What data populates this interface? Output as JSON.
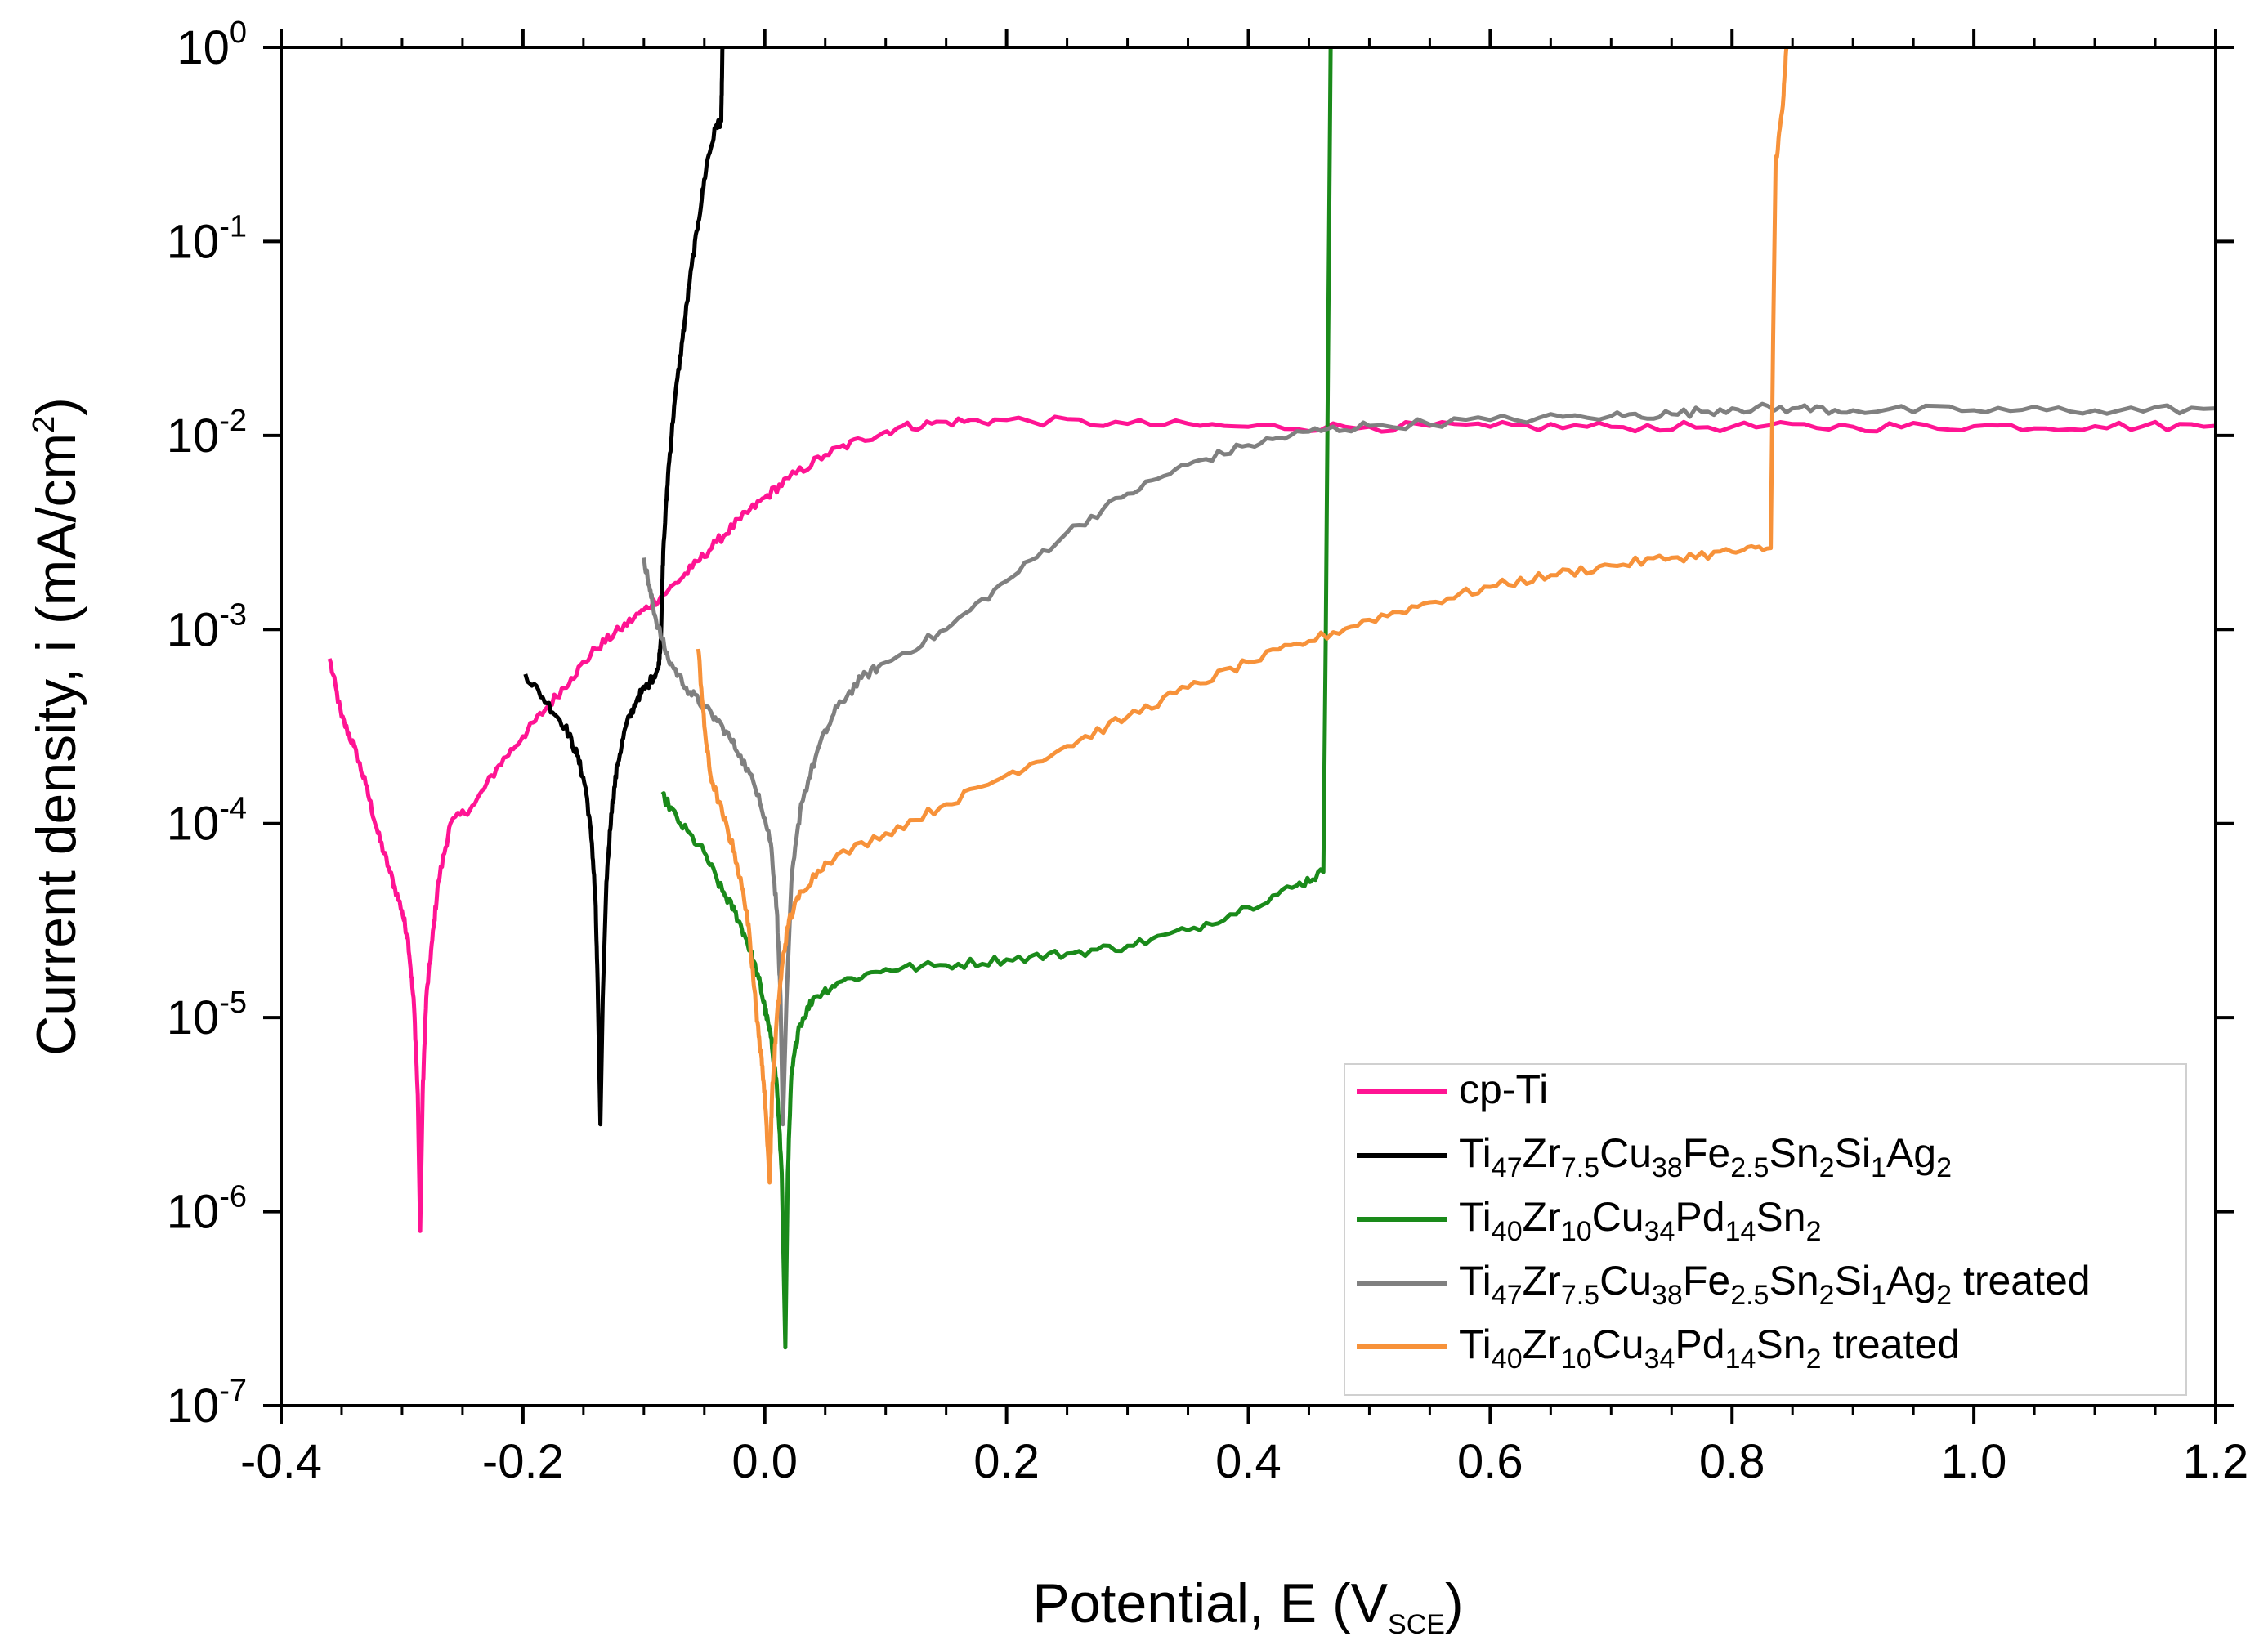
{
  "chart_data": {
    "type": "line",
    "xlabel": "Potential, E (V",
    "xlabel_sub": "SCE",
    "xlabel_end": ")",
    "ylabel": "Current density, i (mA/cm",
    "ylabel_sup": "2",
    "ylabel_end": ")",
    "xlim": [
      -0.4,
      1.2
    ],
    "ylim_log10": [
      -7,
      0
    ],
    "yscale": "log",
    "xticks": [
      -0.4,
      -0.2,
      0.0,
      0.2,
      0.4,
      0.6,
      0.8,
      1.0,
      1.2
    ],
    "xtick_labels": [
      "-0.4",
      "-0.2",
      "0.0",
      "0.2",
      "0.4",
      "0.6",
      "0.8",
      "1.0",
      "1.2"
    ],
    "yticks_exp": [
      -7,
      -6,
      -5,
      -4,
      -3,
      -2,
      -1,
      0
    ],
    "ytick_base": "10",
    "ytick_exps": [
      "-7",
      "-6",
      "-5",
      "-4",
      "-3",
      "-2",
      "-1",
      "0"
    ],
    "legend_position": "bottom-right",
    "series": [
      {
        "name": "cp-Ti",
        "color": "#ff1493",
        "label_parts": [
          [
            "cp-Ti",
            ""
          ]
        ],
        "points": [
          [
            -0.36,
            -3.15
          ],
          [
            -0.35,
            -3.45
          ],
          [
            -0.34,
            -3.6
          ],
          [
            -0.33,
            -3.8
          ],
          [
            -0.32,
            -4.05
          ],
          [
            -0.31,
            -4.25
          ],
          [
            -0.3,
            -4.45
          ],
          [
            -0.295,
            -4.6
          ],
          [
            -0.29,
            -4.95
          ],
          [
            -0.287,
            -5.4
          ],
          [
            -0.285,
            -6.1
          ],
          [
            -0.283,
            -5.4
          ],
          [
            -0.28,
            -4.9
          ],
          [
            -0.275,
            -4.6
          ],
          [
            -0.27,
            -4.3
          ],
          [
            -0.26,
            -4.0
          ],
          [
            -0.24,
            -3.9
          ],
          [
            -0.22,
            -3.7
          ],
          [
            -0.2,
            -3.55
          ],
          [
            -0.18,
            -3.4
          ],
          [
            -0.16,
            -3.25
          ],
          [
            -0.14,
            -3.1
          ],
          [
            -0.12,
            -3.0
          ],
          [
            -0.1,
            -2.9
          ],
          [
            -0.08,
            -2.8
          ],
          [
            -0.06,
            -2.68
          ],
          [
            -0.04,
            -2.55
          ],
          [
            -0.02,
            -2.43
          ],
          [
            0.0,
            -2.32
          ],
          [
            0.02,
            -2.22
          ],
          [
            0.05,
            -2.1
          ],
          [
            0.08,
            -2.02
          ],
          [
            0.11,
            -1.96
          ],
          [
            0.15,
            -1.93
          ],
          [
            0.2,
            -1.92
          ],
          [
            0.3,
            -1.94
          ],
          [
            0.4,
            -1.955
          ],
          [
            0.5,
            -1.955
          ],
          [
            0.6,
            -1.955
          ],
          [
            0.7,
            -1.955
          ],
          [
            0.8,
            -1.955
          ],
          [
            0.9,
            -1.955
          ],
          [
            1.0,
            -1.952
          ],
          [
            1.1,
            -1.952
          ],
          [
            1.2,
            -1.95
          ]
        ]
      },
      {
        "name": "Ti47Zr7.5Cu38Fe2.5Sn2Si1Ag2",
        "color": "#000000",
        "label_parts": [
          [
            "Ti",
            ""
          ],
          [
            "47",
            "sub"
          ],
          [
            "Zr",
            ""
          ],
          [
            "7.5",
            "sub"
          ],
          [
            "Cu",
            ""
          ],
          [
            "38",
            "sub"
          ],
          [
            "Fe",
            ""
          ],
          [
            "2.5",
            "sub"
          ],
          [
            "Sn",
            ""
          ],
          [
            "2",
            "sub"
          ],
          [
            "Si",
            ""
          ],
          [
            "1",
            "sub"
          ],
          [
            "Ag",
            ""
          ],
          [
            "2",
            "sub"
          ]
        ],
        "points": [
          [
            -0.198,
            -3.23
          ],
          [
            -0.18,
            -3.38
          ],
          [
            -0.165,
            -3.5
          ],
          [
            -0.155,
            -3.65
          ],
          [
            -0.148,
            -3.82
          ],
          [
            -0.143,
            -4.1
          ],
          [
            -0.14,
            -4.4
          ],
          [
            -0.138,
            -4.9
          ],
          [
            -0.136,
            -5.55
          ],
          [
            -0.134,
            -4.9
          ],
          [
            -0.131,
            -4.3
          ],
          [
            -0.127,
            -3.95
          ],
          [
            -0.122,
            -3.7
          ],
          [
            -0.115,
            -3.5
          ],
          [
            -0.105,
            -3.35
          ],
          [
            -0.095,
            -3.27
          ],
          [
            -0.088,
            -3.2
          ],
          [
            -0.086,
            -3.05
          ],
          [
            -0.084,
            -2.6
          ],
          [
            -0.08,
            -2.2
          ],
          [
            -0.075,
            -1.85
          ],
          [
            -0.068,
            -1.5
          ],
          [
            -0.062,
            -1.2
          ],
          [
            -0.055,
            -0.9
          ],
          [
            -0.048,
            -0.6
          ],
          [
            -0.04,
            -0.4
          ],
          [
            -0.036,
            -0.38
          ],
          [
            -0.035,
            0.0
          ]
        ]
      },
      {
        "name": "Ti40Zr10Cu34Pd14Sn2",
        "color": "#1a8a1a",
        "label_parts": [
          [
            "Ti",
            ""
          ],
          [
            "40",
            "sub"
          ],
          [
            "Zr",
            ""
          ],
          [
            "10",
            "sub"
          ],
          [
            "Cu",
            ""
          ],
          [
            "34",
            "sub"
          ],
          [
            "Pd",
            ""
          ],
          [
            "14",
            "sub"
          ],
          [
            "Sn",
            ""
          ],
          [
            "2",
            "sub"
          ]
        ],
        "points": [
          [
            -0.085,
            -3.85
          ],
          [
            -0.07,
            -4.0
          ],
          [
            -0.05,
            -4.15
          ],
          [
            -0.035,
            -4.35
          ],
          [
            -0.025,
            -4.45
          ],
          [
            -0.015,
            -4.6
          ],
          [
            -0.005,
            -4.8
          ],
          [
            0.0,
            -4.95
          ],
          [
            0.005,
            -5.1
          ],
          [
            0.01,
            -5.35
          ],
          [
            0.014,
            -5.8
          ],
          [
            0.017,
            -6.7
          ],
          [
            0.019,
            -5.8
          ],
          [
            0.022,
            -5.3
          ],
          [
            0.028,
            -5.05
          ],
          [
            0.04,
            -4.9
          ],
          [
            0.06,
            -4.82
          ],
          [
            0.1,
            -4.75
          ],
          [
            0.15,
            -4.73
          ],
          [
            0.2,
            -4.7
          ],
          [
            0.25,
            -4.67
          ],
          [
            0.3,
            -4.63
          ],
          [
            0.35,
            -4.55
          ],
          [
            0.4,
            -4.43
          ],
          [
            0.44,
            -4.32
          ],
          [
            0.462,
            -4.25
          ],
          [
            0.464,
            -3.0
          ],
          [
            0.466,
            -1.5
          ],
          [
            0.468,
            0.0
          ]
        ]
      },
      {
        "name": "Ti47Zr7.5Cu38Fe2.5Sn2Si1Ag2 treated",
        "color": "#808080",
        "label_parts": [
          [
            "Ti",
            ""
          ],
          [
            "47",
            "sub"
          ],
          [
            "Zr",
            ""
          ],
          [
            "7.5",
            "sub"
          ],
          [
            "Cu",
            ""
          ],
          [
            "38",
            "sub"
          ],
          [
            "Fe",
            ""
          ],
          [
            "2.5",
            "sub"
          ],
          [
            "Sn",
            ""
          ],
          [
            "2",
            "sub"
          ],
          [
            "Si",
            ""
          ],
          [
            "1",
            "sub"
          ],
          [
            "Ag",
            ""
          ],
          [
            "2",
            "sub"
          ],
          [
            " treated",
            ""
          ]
        ],
        "points": [
          [
            -0.1,
            -2.63
          ],
          [
            -0.095,
            -2.8
          ],
          [
            -0.09,
            -2.95
          ],
          [
            -0.08,
            -3.15
          ],
          [
            -0.065,
            -3.3
          ],
          [
            -0.05,
            -3.4
          ],
          [
            -0.035,
            -3.5
          ],
          [
            -0.02,
            -3.65
          ],
          [
            -0.005,
            -3.85
          ],
          [
            0.005,
            -4.1
          ],
          [
            0.01,
            -4.45
          ],
          [
            0.013,
            -4.9
          ],
          [
            0.015,
            -5.55
          ],
          [
            0.018,
            -4.9
          ],
          [
            0.022,
            -4.3
          ],
          [
            0.03,
            -3.9
          ],
          [
            0.045,
            -3.6
          ],
          [
            0.06,
            -3.4
          ],
          [
            0.08,
            -3.25
          ],
          [
            0.1,
            -3.17
          ],
          [
            0.15,
            -3.0
          ],
          [
            0.2,
            -2.75
          ],
          [
            0.25,
            -2.5
          ],
          [
            0.3,
            -2.3
          ],
          [
            0.35,
            -2.15
          ],
          [
            0.4,
            -2.05
          ],
          [
            0.45,
            -1.98
          ],
          [
            0.5,
            -1.95
          ],
          [
            0.6,
            -1.92
          ],
          [
            0.7,
            -1.9
          ],
          [
            0.75,
            -1.89
          ],
          [
            0.8,
            -1.86
          ],
          [
            0.85,
            -1.86
          ],
          [
            0.9,
            -1.87
          ],
          [
            1.0,
            -1.87
          ],
          [
            1.1,
            -1.87
          ],
          [
            1.2,
            -1.86
          ]
        ]
      },
      {
        "name": "Ti40Zr10Cu34Pd14Sn2 treated",
        "color": "#f7923a",
        "label_parts": [
          [
            "Ti",
            ""
          ],
          [
            "40",
            "sub"
          ],
          [
            "Zr",
            ""
          ],
          [
            "10",
            "sub"
          ],
          [
            "Cu",
            ""
          ],
          [
            "34",
            "sub"
          ],
          [
            "Pd",
            ""
          ],
          [
            "14",
            "sub"
          ],
          [
            "Sn",
            ""
          ],
          [
            "2",
            "sub"
          ],
          [
            " treated",
            ""
          ]
        ],
        "points": [
          [
            -0.055,
            -3.1
          ],
          [
            -0.05,
            -3.5
          ],
          [
            -0.045,
            -3.75
          ],
          [
            -0.035,
            -3.95
          ],
          [
            -0.025,
            -4.15
          ],
          [
            -0.015,
            -4.45
          ],
          [
            -0.01,
            -4.75
          ],
          [
            -0.005,
            -5.1
          ],
          [
            -0.002,
            -5.25
          ],
          [
            0.001,
            -5.5
          ],
          [
            0.004,
            -5.85
          ],
          [
            0.006,
            -5.4
          ],
          [
            0.01,
            -5.0
          ],
          [
            0.015,
            -4.7
          ],
          [
            0.02,
            -4.5
          ],
          [
            0.03,
            -4.35
          ],
          [
            0.05,
            -4.2
          ],
          [
            0.1,
            -4.05
          ],
          [
            0.15,
            -3.9
          ],
          [
            0.2,
            -3.75
          ],
          [
            0.25,
            -3.6
          ],
          [
            0.3,
            -3.45
          ],
          [
            0.35,
            -3.3
          ],
          [
            0.4,
            -3.17
          ],
          [
            0.45,
            -3.06
          ],
          [
            0.5,
            -2.95
          ],
          [
            0.55,
            -2.86
          ],
          [
            0.6,
            -2.78
          ],
          [
            0.65,
            -2.72
          ],
          [
            0.7,
            -2.67
          ],
          [
            0.75,
            -2.63
          ],
          [
            0.8,
            -2.6
          ],
          [
            0.832,
            -2.58
          ],
          [
            0.834,
            -1.5
          ],
          [
            0.836,
            -0.6
          ],
          [
            0.842,
            -0.3
          ],
          [
            0.845,
            0.0
          ]
        ]
      }
    ]
  }
}
